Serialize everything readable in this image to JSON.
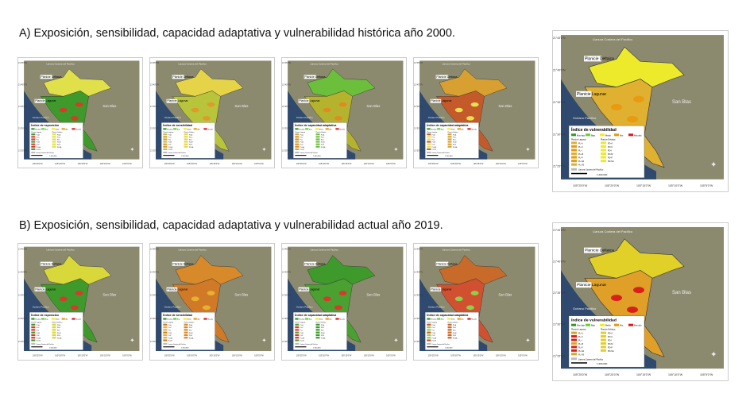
{
  "section_a": {
    "title": "A) Exposición, sensibilidad, capacidad adaptativa y vulnerabilidad histórica año 2000."
  },
  "section_b": {
    "title": "B) Exposición, sensibilidad, capacidad adaptativa y vulnerabilidad actual año 2019."
  },
  "map_labels": {
    "llanura": "Llanura Costera del Pacífico",
    "deltaica": "Planicie Deltaica",
    "lagunar": "Planicie Lagunar",
    "sanblas": "San Blas",
    "oceano": "Océano Pacífico",
    "scale": "1:200,000",
    "lat": [
      "21°45'0\"N",
      "21°40'0\"N",
      "21°35'0\"N",
      "21°30'0\"N",
      "21°25'0\"N"
    ],
    "lon": [
      "105°25'0\"W",
      "105°20'0\"W",
      "105°15'0\"W",
      "105°10'0\"W",
      "105°5'0\"W"
    ]
  },
  "legend_classes": [
    "Muy bajo",
    "Bajo",
    "Medio",
    "Alto",
    "Muy alto"
  ],
  "class_colors": [
    "#2e9a1e",
    "#5fd12a",
    "#f2ec1c",
    "#e89a12",
    "#e0151a"
  ],
  "legend_units_lagunar": [
    "PL-A",
    "PL-C",
    "PL-I",
    "PL-M",
    "PL-P",
    "PL-SA",
    "PL-VS"
  ],
  "legend_units_deltaica": [
    "PD-A",
    "PD-C",
    "PD-I",
    "PD-M",
    "PD-P",
    "PD-SA"
  ],
  "maps": [
    {
      "legend_title": "Índice de exposición",
      "upper": "#e0e04a",
      "lower": "#3f9a2c",
      "spots": "#d83a2a"
    },
    {
      "legend_title": "Índice de sensibilidad",
      "upper": "#e6d448",
      "lower": "#b8c43a",
      "spots": "#e09a2a"
    },
    {
      "legend_title": "Índice de capacidad adaptativa",
      "upper": "#6bbf3a",
      "lower": "#b5b32e",
      "spots": "#e08a20"
    },
    {
      "legend_title": "Índice de capacidad adaptativa",
      "upper": "#d8a030",
      "lower": "#c45a2a",
      "spots": "#e8e050"
    },
    {
      "legend_title": "Índice de vulnerabilidad",
      "upper": "#ecea2a",
      "lower": "#e0b030",
      "spots": "#e89a12"
    },
    {
      "legend_title": "Índice de exposición",
      "upper": "#d8d83a",
      "lower": "#3f9a2c",
      "spots": "#d83a2a"
    },
    {
      "legend_title": "Índice de sensibilidad",
      "upper": "#d88a2a",
      "lower": "#d07a28",
      "spots": "#e8b030"
    },
    {
      "legend_title": "Índice de capacidad adaptativa",
      "upper": "#3f9a2c",
      "lower": "#4aa030",
      "spots": "#d83a2a"
    },
    {
      "legend_title": "Índice de capacidad adaptativa",
      "upper": "#c86a2a",
      "lower": "#d05030",
      "spots": "#8fcf4a"
    },
    {
      "legend_title": "Índice de vulnerabilidad",
      "upper": "#e0d028",
      "lower": "#e0a028",
      "spots": "#d82018"
    }
  ]
}
